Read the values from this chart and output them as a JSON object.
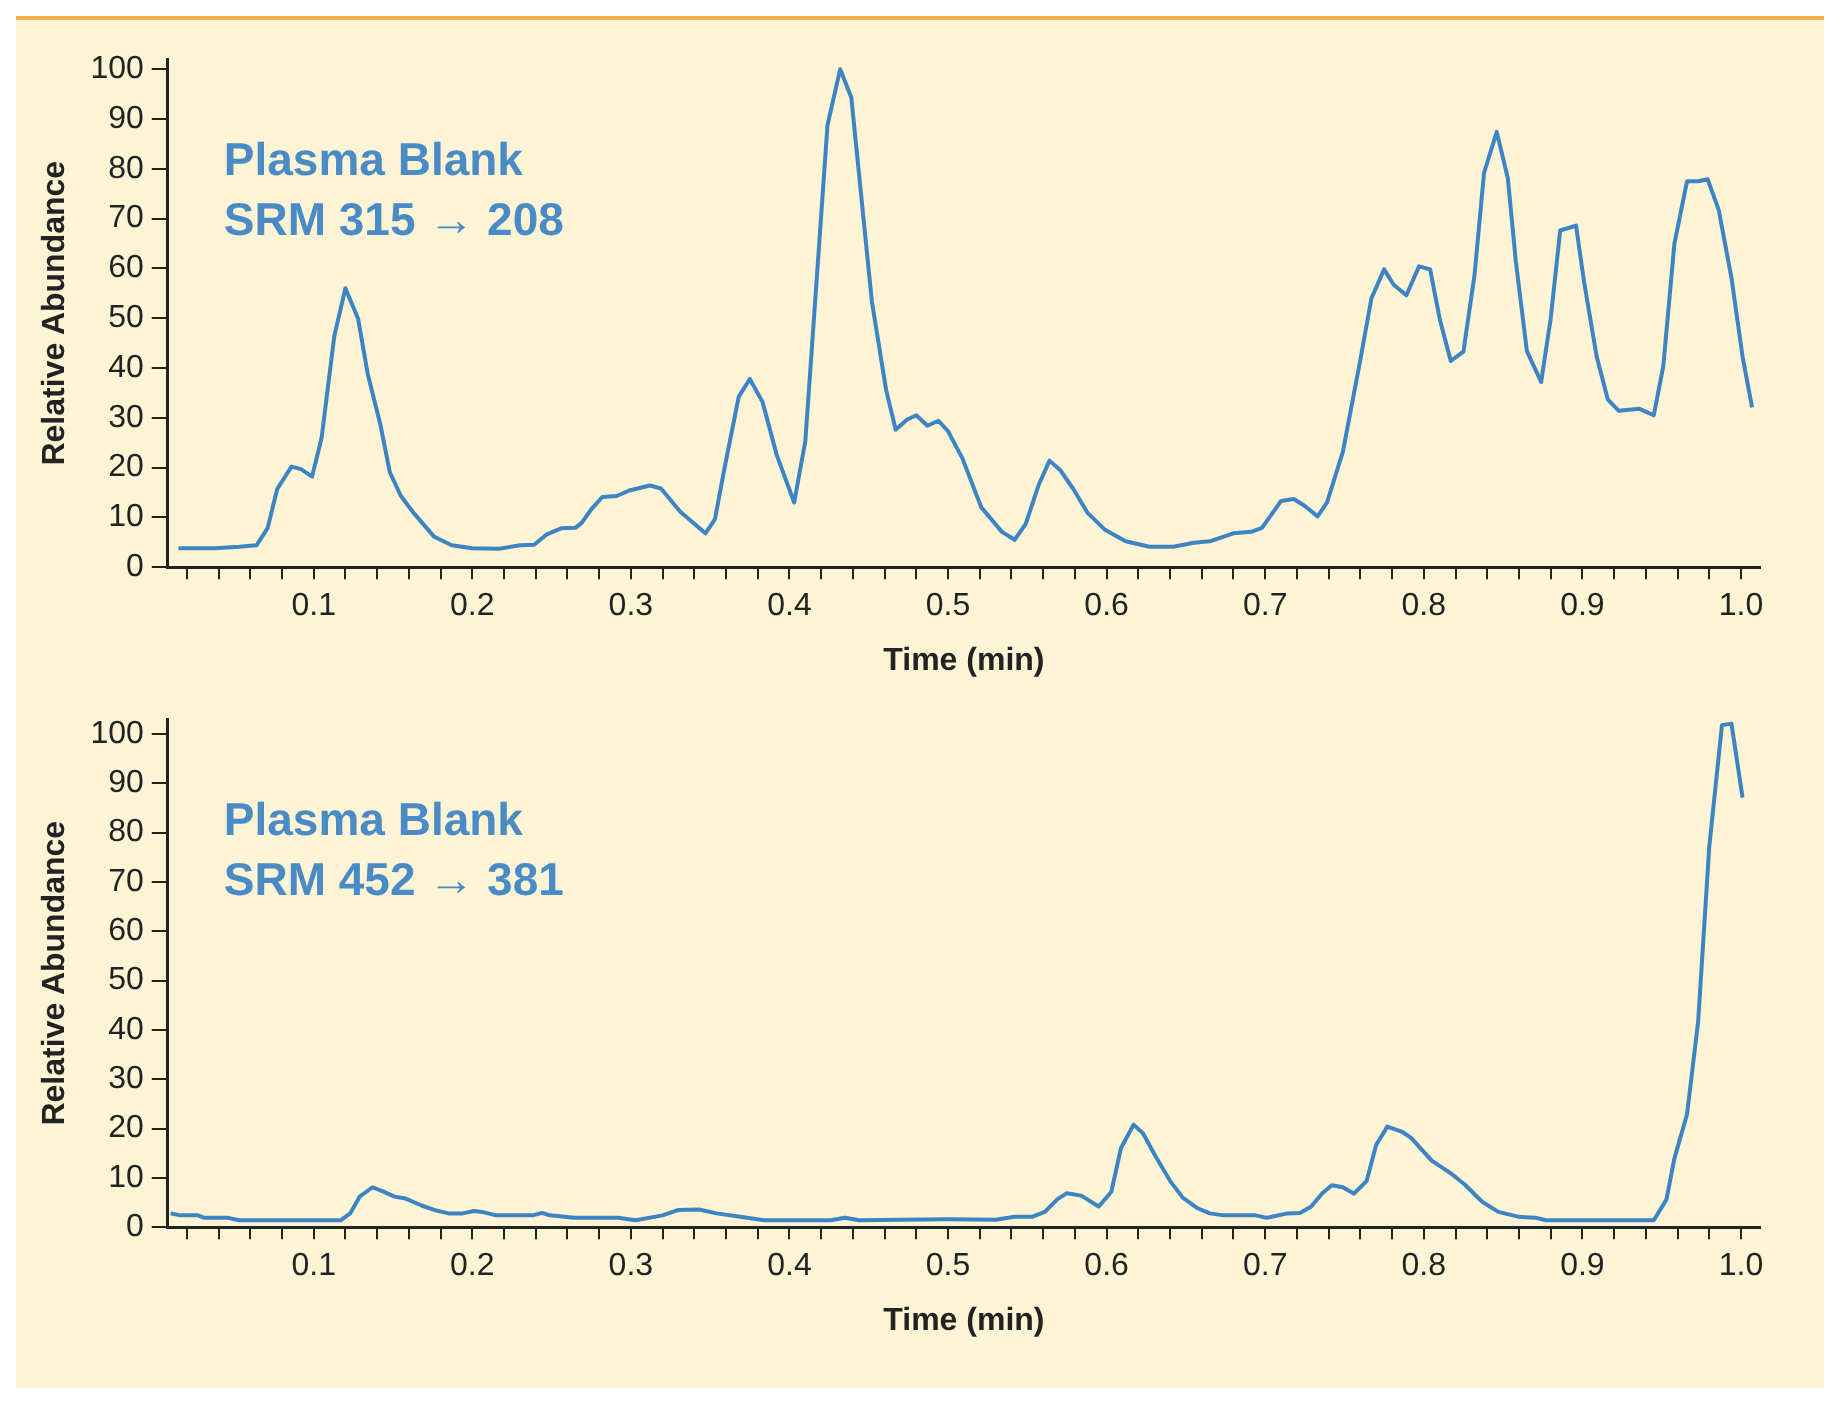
{
  "chart_data": [
    {
      "type": "line",
      "title": "Plasma Blank",
      "subtitle": "SRM 315 → 208",
      "xlabel": "Time (min)",
      "ylabel": "Relative Abundance",
      "color": "#3d84c4",
      "x": [
        0.0147,
        0.038,
        0.053,
        0.064,
        0.071,
        0.077,
        0.086,
        0.092,
        0.099,
        0.105,
        0.113,
        0.12,
        0.128,
        0.134,
        0.142,
        0.148,
        0.155,
        0.163,
        0.176,
        0.187,
        0.2,
        0.217,
        0.23,
        0.239,
        0.247,
        0.256,
        0.265,
        0.269,
        0.275,
        0.282,
        0.291,
        0.299,
        0.312,
        0.319,
        0.331,
        0.347,
        0.353,
        0.359,
        0.368,
        0.375,
        0.383,
        0.392,
        0.403,
        0.41,
        0.418,
        0.424,
        0.432,
        0.439,
        0.452,
        0.461,
        0.467,
        0.474,
        0.48,
        0.487,
        0.494,
        0.5,
        0.509,
        0.521,
        0.534,
        0.542,
        0.549,
        0.557,
        0.564,
        0.571,
        0.579,
        0.588,
        0.599,
        0.612,
        0.627,
        0.642,
        0.655,
        0.665,
        0.68,
        0.691,
        0.698,
        0.71,
        0.718,
        0.725,
        0.733,
        0.739,
        0.749,
        0.76,
        0.767,
        0.775,
        0.781,
        0.789,
        0.797,
        0.804,
        0.81,
        0.817,
        0.825,
        0.832,
        0.838,
        0.846,
        0.853,
        0.858,
        0.865,
        0.874,
        0.88,
        0.886,
        0.896,
        0.901,
        0.909,
        0.916,
        0.923,
        0.936,
        0.945,
        0.951,
        0.958,
        0.966,
        0.973,
        0.979,
        0.986,
        0.994,
        1.001,
        1.007
      ],
      "values": [
        3.8,
        3.8,
        4.1,
        4.4,
        7.9,
        15.7,
        20.2,
        19.7,
        18.2,
        26,
        46.4,
        56,
        49.9,
        38.9,
        28.7,
        19.1,
        14.3,
        10.9,
        6.1,
        4.4,
        3.8,
        3.7,
        4.4,
        4.5,
        6.6,
        7.8,
        7.9,
        8.9,
        11.6,
        14.1,
        14.3,
        15.4,
        16.4,
        15.8,
        11.2,
        6.8,
        9.6,
        19.8,
        34.2,
        37.8,
        33.2,
        22.5,
        13,
        25.3,
        61.5,
        88.8,
        100,
        94.3,
        53.3,
        35.5,
        27.6,
        29.6,
        30.5,
        28.4,
        29.4,
        27.3,
        21.9,
        12,
        7.1,
        5.5,
        8.7,
        16.4,
        21.4,
        19.4,
        15.7,
        10.9,
        7.5,
        5.2,
        4.1,
        4.1,
        4.9,
        5.2,
        6.8,
        7.1,
        7.9,
        13.3,
        13.7,
        12.3,
        10.2,
        13,
        23.2,
        41.7,
        54,
        59.8,
        56.7,
        54.6,
        60.4,
        59.8,
        49.9,
        41.4,
        43.3,
        58.7,
        79.2,
        87.4,
        78.1,
        61.5,
        43.4,
        37.2,
        49.9,
        67.6,
        68.6,
        57.4,
        42.3,
        33.7,
        31.4,
        31.8,
        30.5,
        40.3,
        64.9,
        77.5,
        77.5,
        77.9,
        71.7,
        58.1,
        42.3,
        32.1
      ],
      "xlim": [
        0.008,
        1.012
      ],
      "ylim": [
        0,
        102
      ],
      "xticks": [
        {
          "value": 0.02,
          "label": null
        },
        {
          "value": 0.04,
          "label": null
        },
        {
          "value": 0.06,
          "label": null
        },
        {
          "value": 0.08,
          "label": null
        },
        0.1,
        {
          "value": 0.12,
          "label": null
        },
        {
          "value": 0.14,
          "label": null
        },
        {
          "value": 0.16,
          "label": null
        },
        {
          "value": 0.18,
          "label": null
        },
        0.2,
        {
          "value": 0.22,
          "label": null
        },
        {
          "value": 0.24,
          "label": null
        },
        {
          "value": 0.26,
          "label": null
        },
        {
          "value": 0.28,
          "label": null
        },
        0.3,
        {
          "value": 0.32,
          "label": null
        },
        {
          "value": 0.34,
          "label": null
        },
        {
          "value": 0.36,
          "label": null
        },
        {
          "value": 0.38,
          "label": null
        },
        0.4,
        {
          "value": 0.42,
          "label": null
        },
        {
          "value": 0.44,
          "label": null
        },
        {
          "value": 0.46,
          "label": null
        },
        {
          "value": 0.48,
          "label": null
        },
        0.5,
        {
          "value": 0.52,
          "label": null
        },
        {
          "value": 0.54,
          "label": null
        },
        {
          "value": 0.56,
          "label": null
        },
        {
          "value": 0.58,
          "label": null
        },
        0.6,
        {
          "value": 0.62,
          "label": null
        },
        {
          "value": 0.64,
          "label": null
        },
        {
          "value": 0.66,
          "label": null
        },
        {
          "value": 0.68,
          "label": null
        },
        0.7,
        {
          "value": 0.72,
          "label": null
        },
        {
          "value": 0.74,
          "label": null
        },
        {
          "value": 0.76,
          "label": null
        },
        {
          "value": 0.78,
          "label": null
        },
        0.8,
        {
          "value": 0.82,
          "label": null
        },
        {
          "value": 0.84,
          "label": null
        },
        {
          "value": 0.86,
          "label": null
        },
        {
          "value": 0.88,
          "label": null
        },
        0.9,
        {
          "value": 0.92,
          "label": null
        },
        {
          "value": 0.94,
          "label": null
        },
        {
          "value": 0.96,
          "label": null
        },
        {
          "value": 0.98,
          "label": null
        },
        {
          "value": 1,
          "label": "1.0"
        }
      ],
      "yticks": [
        0,
        10,
        20,
        30,
        40,
        50,
        60,
        70,
        80,
        90,
        100
      ]
    },
    {
      "type": "line",
      "title": "Plasma Blank",
      "subtitle": "SRM 452 → 381",
      "xlabel": "Time (min)",
      "ylabel": "Relative Abundance",
      "color": "#3d84c4",
      "x": [
        0.0098,
        0.016,
        0.027,
        0.031,
        0.046,
        0.053,
        0.072,
        0.093,
        0.117,
        0.123,
        0.129,
        0.137,
        0.144,
        0.151,
        0.158,
        0.168,
        0.176,
        0.185,
        0.194,
        0.201,
        0.206,
        0.215,
        0.238,
        0.244,
        0.249,
        0.264,
        0.292,
        0.303,
        0.32,
        0.33,
        0.343,
        0.354,
        0.369,
        0.384,
        0.426,
        0.435,
        0.444,
        0.5,
        0.53,
        0.542,
        0.553,
        0.561,
        0.569,
        0.575,
        0.584,
        0.595,
        0.603,
        0.609,
        0.617,
        0.623,
        0.631,
        0.64,
        0.648,
        0.657,
        0.665,
        0.674,
        0.694,
        0.701,
        0.714,
        0.722,
        0.729,
        0.736,
        0.742,
        0.749,
        0.756,
        0.764,
        0.77,
        0.777,
        0.786,
        0.792,
        0.805,
        0.818,
        0.826,
        0.837,
        0.847,
        0.86,
        0.871,
        0.877,
        0.945,
        0.953,
        0.958,
        0.966,
        0.973,
        0.98,
        0.988,
        0.994,
        1.001
      ],
      "values": [
        2.8,
        2.4,
        2.4,
        1.9,
        1.9,
        1.4,
        1.4,
        1.4,
        1.4,
        2.8,
        6.2,
        8.1,
        7.2,
        6.2,
        5.8,
        4.4,
        3.5,
        2.8,
        2.8,
        3.3,
        3.1,
        2.4,
        2.4,
        2.9,
        2.4,
        1.9,
        1.9,
        1.4,
        2.4,
        3.5,
        3.6,
        2.8,
        2.1,
        1.4,
        1.4,
        1.9,
        1.4,
        1.6,
        1.5,
        2.1,
        2.1,
        3.1,
        5.7,
        6.9,
        6.4,
        4.2,
        7.2,
        16,
        20.8,
        19,
        14.3,
        9.4,
        6,
        3.9,
        2.8,
        2.4,
        2.4,
        1.9,
        2.8,
        2.9,
        4.2,
        6.9,
        8.5,
        8.1,
        6.8,
        9.4,
        16.7,
        20.4,
        19.4,
        18.1,
        13.5,
        10.7,
        8.6,
        5.1,
        3.1,
        2.1,
        1.9,
        1.4,
        1.4,
        5.6,
        13.9,
        22.9,
        41.7,
        77.1,
        101.8,
        102.1,
        87.1
      ],
      "xlim": [
        0.008,
        1.012
      ],
      "ylim": [
        0,
        103
      ],
      "xticks": [
        {
          "value": 0.02,
          "label": null
        },
        {
          "value": 0.04,
          "label": null
        },
        {
          "value": 0.06,
          "label": null
        },
        {
          "value": 0.08,
          "label": null
        },
        0.1,
        {
          "value": 0.12,
          "label": null
        },
        {
          "value": 0.14,
          "label": null
        },
        {
          "value": 0.16,
          "label": null
        },
        {
          "value": 0.18,
          "label": null
        },
        0.2,
        {
          "value": 0.22,
          "label": null
        },
        {
          "value": 0.24,
          "label": null
        },
        {
          "value": 0.26,
          "label": null
        },
        {
          "value": 0.28,
          "label": null
        },
        0.3,
        {
          "value": 0.32,
          "label": null
        },
        {
          "value": 0.34,
          "label": null
        },
        {
          "value": 0.36,
          "label": null
        },
        {
          "value": 0.38,
          "label": null
        },
        0.4,
        {
          "value": 0.42,
          "label": null
        },
        {
          "value": 0.44,
          "label": null
        },
        {
          "value": 0.46,
          "label": null
        },
        {
          "value": 0.48,
          "label": null
        },
        0.5,
        {
          "value": 0.52,
          "label": null
        },
        {
          "value": 0.54,
          "label": null
        },
        {
          "value": 0.56,
          "label": null
        },
        {
          "value": 0.58,
          "label": null
        },
        0.6,
        {
          "value": 0.62,
          "label": null
        },
        {
          "value": 0.64,
          "label": null
        },
        {
          "value": 0.66,
          "label": null
        },
        {
          "value": 0.68,
          "label": null
        },
        0.7,
        {
          "value": 0.72,
          "label": null
        },
        {
          "value": 0.74,
          "label": null
        },
        {
          "value": 0.76,
          "label": null
        },
        {
          "value": 0.78,
          "label": null
        },
        0.8,
        {
          "value": 0.82,
          "label": null
        },
        {
          "value": 0.84,
          "label": null
        },
        {
          "value": 0.86,
          "label": null
        },
        {
          "value": 0.88,
          "label": null
        },
        0.9,
        {
          "value": 0.92,
          "label": null
        },
        {
          "value": 0.94,
          "label": null
        },
        {
          "value": 0.96,
          "label": null
        },
        {
          "value": 0.98,
          "label": null
        },
        {
          "value": 1,
          "label": "1.0"
        }
      ],
      "yticks": [
        0,
        10,
        20,
        30,
        40,
        50,
        60,
        70,
        80,
        90,
        100
      ]
    }
  ]
}
